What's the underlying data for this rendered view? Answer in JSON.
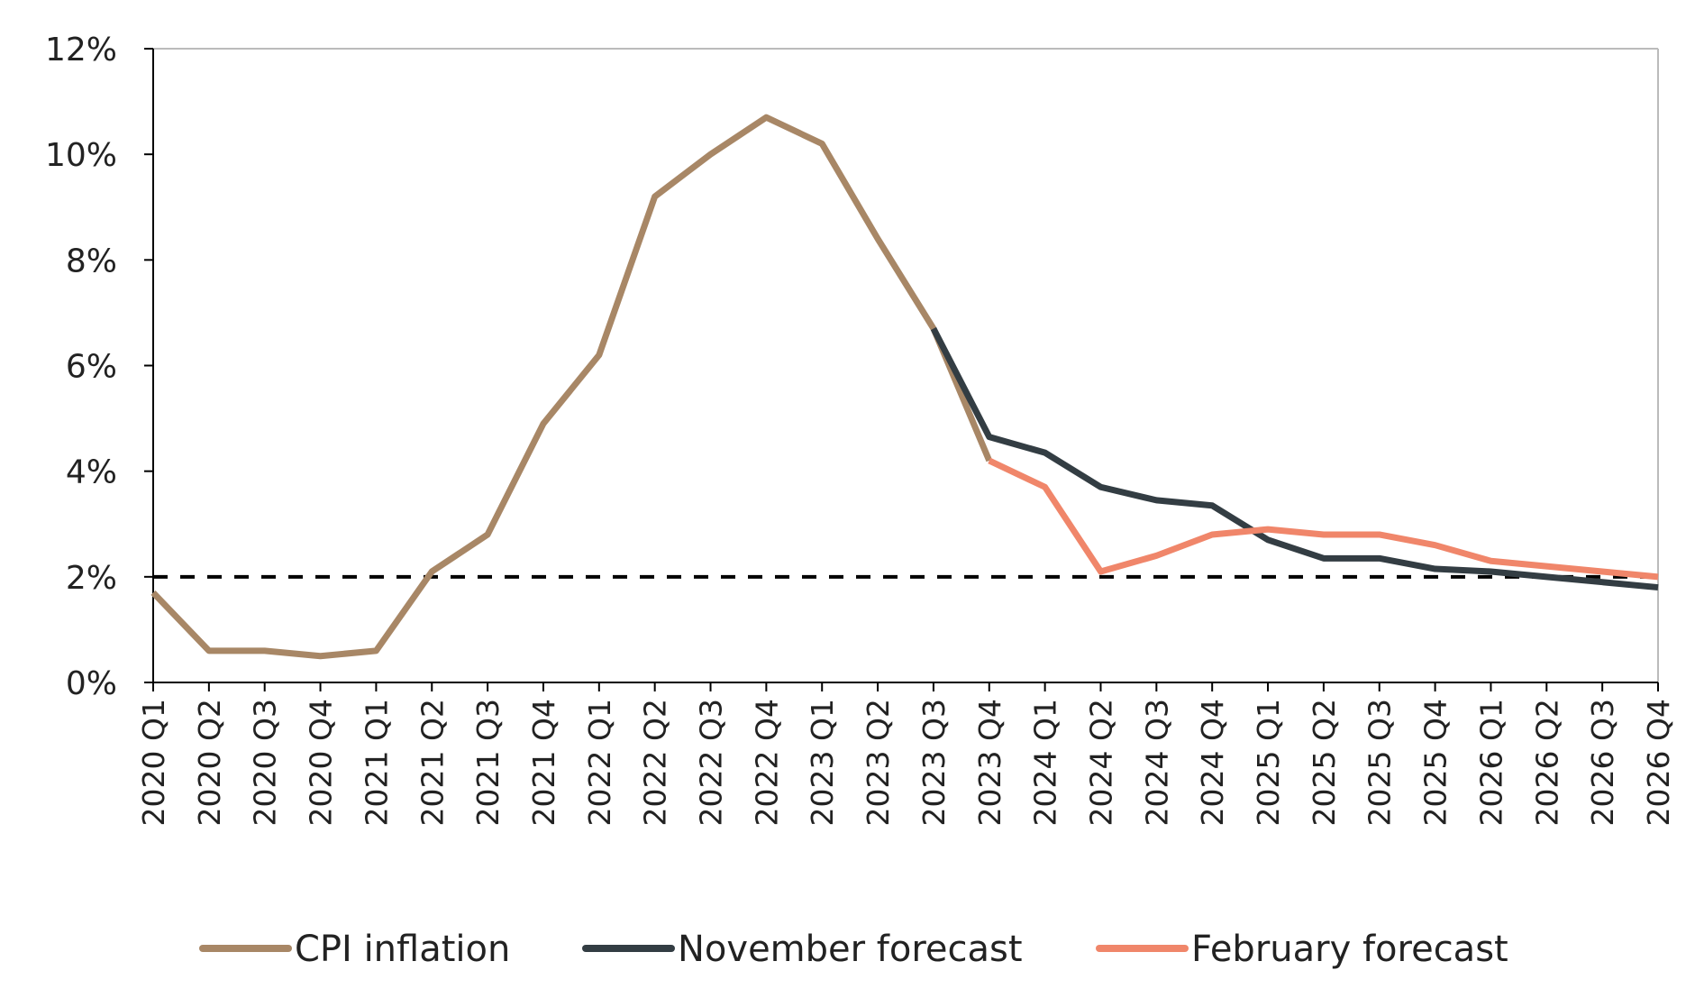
{
  "chart_data": {
    "type": "line",
    "categories": [
      "2020 Q1",
      "2020 Q2",
      "2020 Q3",
      "2020 Q4",
      "2021 Q1",
      "2021 Q2",
      "2021 Q3",
      "2021 Q4",
      "2022 Q1",
      "2022 Q2",
      "2022 Q3",
      "2022 Q4",
      "2023 Q1",
      "2023 Q2",
      "2023 Q3",
      "2023 Q4",
      "2024 Q1",
      "2024 Q2",
      "2024 Q3",
      "2024 Q4",
      "2025 Q1",
      "2025 Q2",
      "2025 Q3",
      "2025 Q4",
      "2026 Q1",
      "2026 Q2",
      "2026 Q3",
      "2026 Q4"
    ],
    "series": [
      {
        "name": "CPI inflation",
        "color": "#a88766",
        "values": [
          1.7,
          0.6,
          0.6,
          0.5,
          0.6,
          2.1,
          2.8,
          4.9,
          6.2,
          9.2,
          10.0,
          10.7,
          10.2,
          8.4,
          6.7,
          4.2,
          null,
          null,
          null,
          null,
          null,
          null,
          null,
          null,
          null,
          null,
          null,
          null
        ]
      },
      {
        "name": "November forecast",
        "color": "#333d43",
        "values": [
          null,
          null,
          null,
          null,
          null,
          null,
          null,
          null,
          null,
          null,
          null,
          null,
          null,
          null,
          6.7,
          4.65,
          4.35,
          3.7,
          3.45,
          3.35,
          2.7,
          2.35,
          2.35,
          2.15,
          2.1,
          2.0,
          1.9,
          1.8
        ]
      },
      {
        "name": "February forecast",
        "color": "#f0866a",
        "values": [
          null,
          null,
          null,
          null,
          null,
          null,
          null,
          null,
          null,
          null,
          null,
          null,
          null,
          null,
          null,
          4.2,
          3.7,
          2.1,
          2.4,
          2.8,
          2.9,
          2.8,
          2.8,
          2.6,
          2.3,
          2.2,
          2.1,
          2.0
        ]
      }
    ],
    "ylim": [
      0,
      12
    ],
    "yticks": [
      {
        "value": 0,
        "label": "0%"
      },
      {
        "value": 2,
        "label": "2%"
      },
      {
        "value": 4,
        "label": "4%"
      },
      {
        "value": 6,
        "label": "6%"
      },
      {
        "value": 8,
        "label": "8%"
      },
      {
        "value": 10,
        "label": "10%"
      },
      {
        "value": 12,
        "label": "12%"
      }
    ],
    "reference_line": {
      "value": 2,
      "color": "#000000",
      "dashed": true
    },
    "legend": "bottom"
  }
}
